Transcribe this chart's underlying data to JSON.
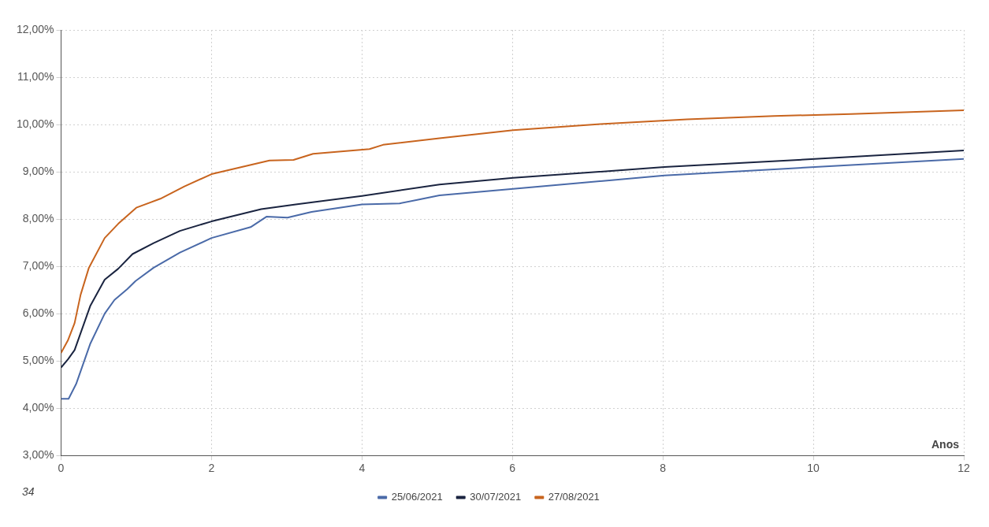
{
  "chart_data": {
    "type": "line",
    "xlabel": "Anos",
    "annotations": [
      "34"
    ],
    "xlim": [
      0,
      12
    ],
    "xticks": [
      0,
      2,
      4,
      6,
      8,
      10,
      12
    ],
    "ylim": [
      3,
      12
    ],
    "yticks": [
      {
        "value": 3,
        "label": "3,00%"
      },
      {
        "value": 4,
        "label": "4,00%"
      },
      {
        "value": 5,
        "label": "5,00%"
      },
      {
        "value": 6,
        "label": "6,00%"
      },
      {
        "value": 7,
        "label": "7,00%"
      },
      {
        "value": 8,
        "label": "8,00%"
      },
      {
        "value": 9,
        "label": "9,00%"
      },
      {
        "value": 10,
        "label": "10,00%"
      },
      {
        "value": 11,
        "label": "11,00%"
      },
      {
        "value": 12,
        "label": "12,00%"
      }
    ],
    "grid": true,
    "legend": "bottom",
    "marker": "none",
    "line_style": "solid",
    "series": [
      {
        "name": "25/06/2021",
        "color": "#4a6aa8",
        "x": [
          0,
          0.1,
          0.2,
          0.39,
          0.58,
          0.71,
          0.88,
          0.99,
          1.23,
          1.58,
          2.0,
          2.52,
          2.73,
          3.01,
          3.33,
          4.0,
          4.5,
          5.03,
          6.01,
          8.02,
          10.02,
          12
        ],
        "values": [
          4.2,
          4.2,
          4.51,
          5.37,
          6.0,
          6.29,
          6.52,
          6.69,
          6.97,
          7.29,
          7.6,
          7.83,
          8.05,
          8.03,
          8.15,
          8.31,
          8.33,
          8.5,
          8.64,
          8.92,
          9.1,
          9.27
        ]
      },
      {
        "name": "30/07/2021",
        "color": "#1a2440",
        "x": [
          0,
          0.09,
          0.18,
          0.39,
          0.58,
          0.76,
          0.95,
          1.23,
          1.58,
          2.0,
          2.66,
          3.12,
          4.0,
          5.03,
          6.01,
          8.02,
          10.02,
          12
        ],
        "values": [
          4.86,
          5.03,
          5.23,
          6.17,
          6.72,
          6.95,
          7.26,
          7.49,
          7.75,
          7.95,
          8.21,
          8.31,
          8.49,
          8.73,
          8.87,
          9.1,
          9.27,
          9.45
        ]
      },
      {
        "name": "27/08/2021",
        "color": "#c8641e",
        "x": [
          0,
          0.09,
          0.18,
          0.26,
          0.37,
          0.58,
          0.76,
          1.0,
          1.32,
          1.64,
          2.0,
          2.77,
          3.09,
          3.35,
          4.1,
          4.28,
          5.03,
          6.01,
          7.17,
          8.32,
          9.48,
          10.5,
          12
        ],
        "values": [
          5.17,
          5.43,
          5.8,
          6.4,
          6.97,
          7.6,
          7.9,
          8.24,
          8.43,
          8.69,
          8.95,
          9.24,
          9.25,
          9.38,
          9.48,
          9.57,
          9.71,
          9.88,
          10.01,
          10.11,
          10.18,
          10.22,
          10.3
        ]
      }
    ]
  }
}
